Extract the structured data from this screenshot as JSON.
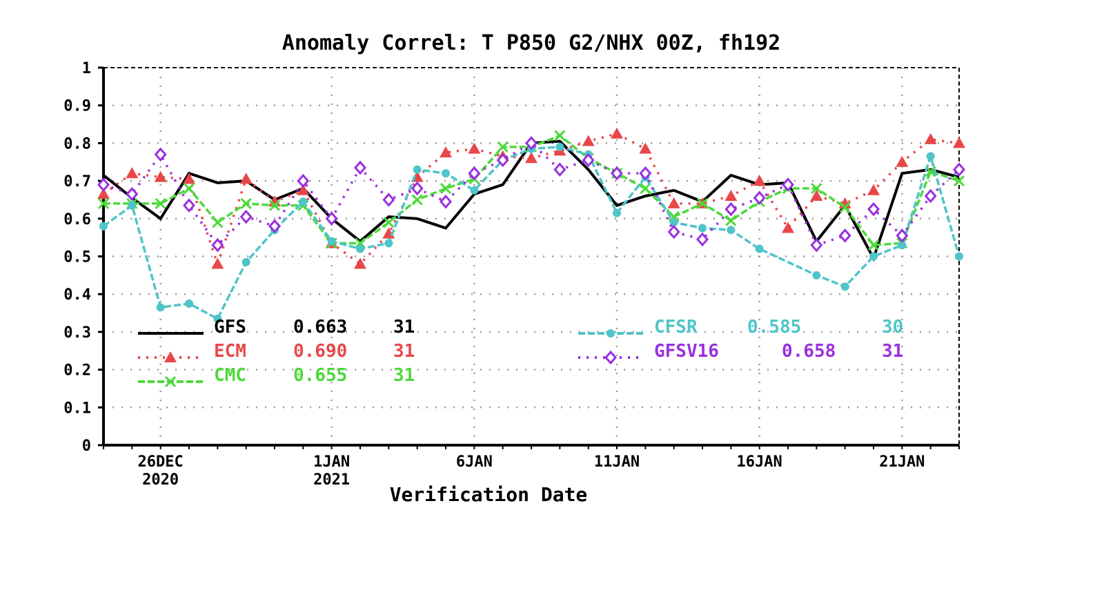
{
  "chart_data": {
    "type": "line",
    "title": "Anomaly Correl: T P850 G2/NHX 00Z, fh192",
    "xlabel": "Verification Date",
    "ylabel": "",
    "ylim": [
      0,
      1
    ],
    "yticks": [
      "0",
      "0.1",
      "0.2",
      "0.3",
      "0.4",
      "0.5",
      "0.6",
      "0.7",
      "0.8",
      "0.9",
      "1"
    ],
    "x_dates": [
      "24DEC",
      "25DEC",
      "26DEC",
      "27DEC",
      "28DEC",
      "29DEC",
      "30DEC",
      "31DEC",
      "1JAN",
      "2JAN",
      "3JAN",
      "4JAN",
      "5JAN",
      "6JAN",
      "7JAN",
      "8JAN",
      "9JAN",
      "10JAN",
      "11JAN",
      "12JAN",
      "13JAN",
      "14JAN",
      "15JAN",
      "16JAN",
      "17JAN",
      "18JAN",
      "19JAN",
      "20JAN",
      "21JAN",
      "22JAN",
      "23JAN"
    ],
    "xticks": [
      {
        "index": 2,
        "label": "26DEC",
        "sub": "2020"
      },
      {
        "index": 8,
        "label": "1JAN",
        "sub": "2021"
      },
      {
        "index": 13,
        "label": "6JAN",
        "sub": ""
      },
      {
        "index": 18,
        "label": "11JAN",
        "sub": ""
      },
      {
        "index": 23,
        "label": "16JAN",
        "sub": ""
      },
      {
        "index": 28,
        "label": "21JAN",
        "sub": ""
      }
    ],
    "grid": true,
    "series": [
      {
        "name": "GFS",
        "mean": "0.663",
        "count": "31",
        "color": "#000000",
        "marker": "none",
        "dash": "solid",
        "values": [
          0.715,
          0.655,
          0.6,
          0.72,
          0.695,
          0.7,
          0.65,
          0.68,
          0.6,
          0.54,
          0.605,
          0.6,
          0.575,
          0.665,
          0.69,
          0.8,
          0.805,
          0.73,
          0.635,
          0.66,
          0.675,
          0.645,
          0.715,
          0.69,
          0.695,
          0.54,
          0.635,
          0.495,
          0.72,
          0.73,
          0.71
        ]
      },
      {
        "name": "ECM",
        "mean": "0.690",
        "count": "31",
        "color": "#e8474a",
        "marker": "triangle",
        "dash": "dotted",
        "values": [
          0.665,
          0.72,
          0.71,
          0.705,
          0.48,
          0.705,
          0.645,
          0.675,
          0.535,
          0.48,
          0.56,
          0.71,
          0.775,
          0.785,
          0.765,
          0.76,
          0.78,
          0.805,
          0.825,
          0.785,
          0.64,
          0.64,
          0.66,
          0.7,
          0.575,
          0.66,
          0.64,
          0.675,
          0.75,
          0.81,
          0.8
        ]
      },
      {
        "name": "CMC",
        "mean": "0.655",
        "count": "31",
        "color": "#4cd93a",
        "marker": "x",
        "dash": "dashed",
        "values": [
          0.64,
          0.64,
          0.64,
          0.68,
          0.59,
          0.64,
          0.635,
          0.635,
          0.535,
          0.535,
          0.59,
          0.65,
          0.68,
          0.705,
          0.79,
          0.79,
          0.82,
          0.76,
          0.72,
          0.68,
          0.605,
          0.64,
          0.595,
          0.645,
          0.68,
          0.68,
          0.63,
          0.53,
          0.535,
          0.725,
          0.7
        ]
      },
      {
        "name": "CFSR",
        "mean": "0.585",
        "count": "30",
        "color": "#4fc4c9",
        "marker": "dot",
        "dash": "dashed",
        "values": [
          0.58,
          0.635,
          0.365,
          0.375,
          0.335,
          0.485,
          0.57,
          0.645,
          0.54,
          0.52,
          0.535,
          0.73,
          0.72,
          0.675,
          0.755,
          0.785,
          0.79,
          0.77,
          0.615,
          0.71,
          0.59,
          0.575,
          0.57,
          0.52,
          null,
          0.45,
          0.42,
          0.5,
          0.53,
          0.765,
          0.5
        ]
      },
      {
        "name": "GFSV16",
        "mean": "0.658",
        "count": "31",
        "color": "#9a2fe0",
        "marker": "diamond",
        "dash": "dotted",
        "values": [
          0.69,
          0.665,
          0.77,
          0.635,
          0.53,
          0.605,
          0.58,
          0.7,
          0.6,
          0.735,
          0.65,
          0.68,
          0.645,
          0.72,
          0.755,
          0.8,
          0.73,
          0.755,
          0.72,
          0.72,
          0.565,
          0.545,
          0.625,
          0.655,
          0.69,
          0.53,
          0.555,
          0.625,
          0.555,
          0.66,
          0.73
        ]
      }
    ],
    "legend": "inside-bottom"
  }
}
